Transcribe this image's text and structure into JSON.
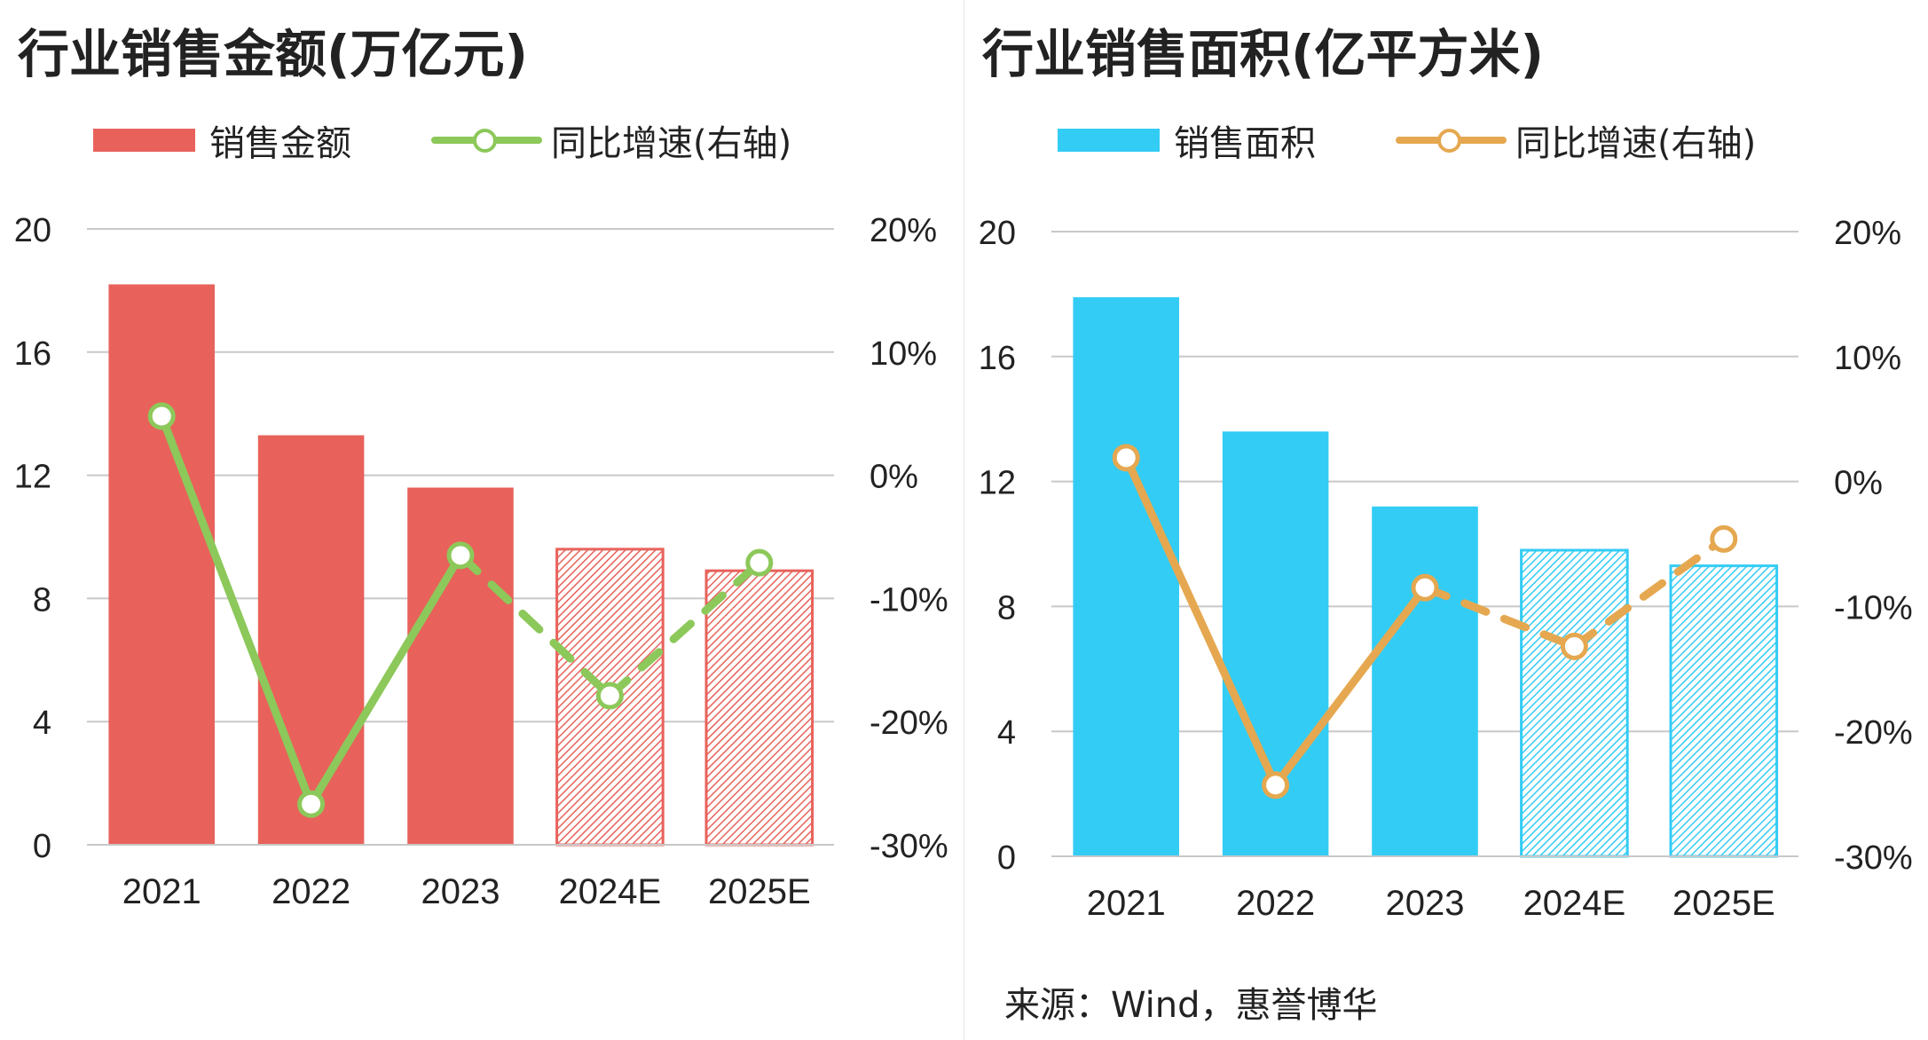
{
  "colors": {
    "left_bar": "#E8625B",
    "left_line": "#8CC85A",
    "right_bar": "#33CCF5",
    "right_line": "#E5A850",
    "grid": "#C8C8C8",
    "text": "#222222"
  },
  "source_text": "来源：Wind，惠誉博华",
  "chart_data": [
    {
      "type": "bar",
      "title": "行业销售金额(万亿元)",
      "categories": [
        "2021",
        "2022",
        "2023",
        "2024E",
        "2025E"
      ],
      "series": [
        {
          "name": "销售金额",
          "type": "bar",
          "axis": "left",
          "values": [
            18.2,
            13.3,
            11.6,
            9.6,
            8.9
          ],
          "estimate_flags": [
            false,
            false,
            false,
            true,
            true
          ]
        },
        {
          "name": "同比增速(右轴)",
          "type": "line",
          "axis": "right",
          "values": [
            4.8,
            -26.7,
            -6.5,
            -17.9,
            -7.1
          ],
          "estimate_segments_from_index": 2
        }
      ],
      "y_left": {
        "min": 0,
        "max": 20,
        "ticks": [
          0,
          4,
          8,
          12,
          16,
          20
        ],
        "tick_labels": [
          "0",
          "4",
          "8",
          "12",
          "16",
          "20"
        ]
      },
      "y_right": {
        "min": -30,
        "max": 20,
        "ticks": [
          -30,
          -20,
          -10,
          0,
          10,
          20
        ],
        "tick_labels": [
          "-30%",
          "-20%",
          "-10%",
          "0%",
          "10%",
          "20%"
        ]
      },
      "grid": true,
      "legend_position": "top"
    },
    {
      "type": "bar",
      "title": "行业销售面积(亿平方米)",
      "categories": [
        "2021",
        "2022",
        "2023",
        "2024E",
        "2025E"
      ],
      "series": [
        {
          "name": "销售面积",
          "type": "bar",
          "axis": "left",
          "values": [
            17.9,
            13.6,
            11.2,
            9.8,
            9.3
          ],
          "estimate_flags": [
            false,
            false,
            false,
            true,
            true
          ]
        },
        {
          "name": "同比增速(右轴)",
          "type": "line",
          "axis": "right",
          "values": [
            1.9,
            -24.3,
            -8.5,
            -13.2,
            -4.6
          ],
          "estimate_segments_from_index": 2
        }
      ],
      "y_left": {
        "min": 0,
        "max": 20,
        "ticks": [
          0,
          4,
          8,
          12,
          16,
          20
        ],
        "tick_labels": [
          "0",
          "4",
          "8",
          "12",
          "16",
          "20"
        ]
      },
      "y_right": {
        "min": -30,
        "max": 20,
        "ticks": [
          -30,
          -20,
          -10,
          0,
          10,
          20
        ],
        "tick_labels": [
          "-30%",
          "-20%",
          "-10%",
          "0%",
          "10%",
          "20%"
        ]
      },
      "grid": true,
      "legend_position": "top"
    }
  ]
}
